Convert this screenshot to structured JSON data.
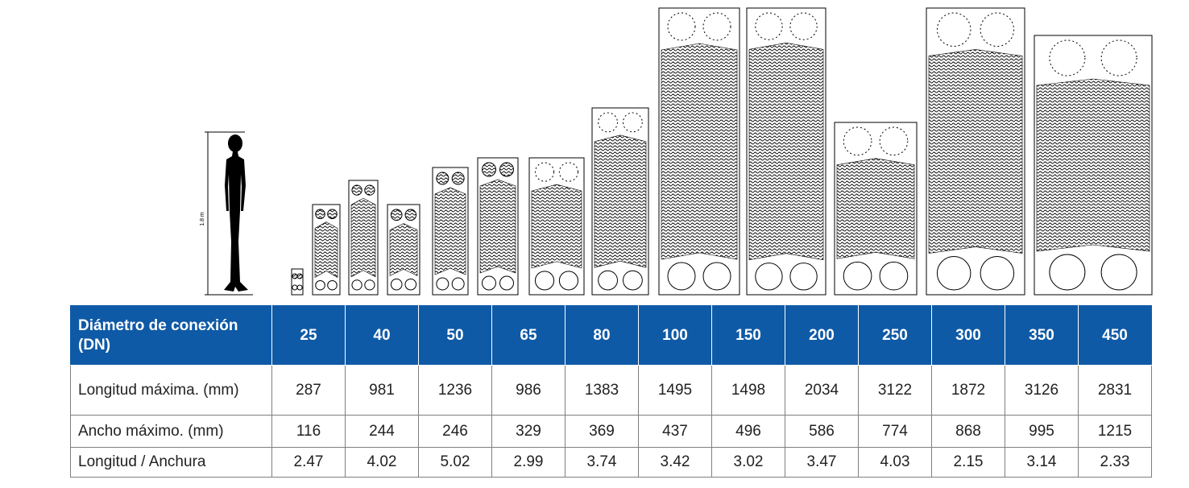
{
  "human": {
    "height_label": "1.8 m"
  },
  "table": {
    "header_label": "Diámetro de conexión (DN)",
    "columns": [
      "25",
      "40",
      "50",
      "65",
      "80",
      "100",
      "150",
      "200",
      "250",
      "300",
      "350",
      "450"
    ],
    "rows": [
      {
        "label": "Longitud máxima. (mm)",
        "values": [
          "287",
          "981",
          "1236",
          "986",
          "1383",
          "1495",
          "1498",
          "2034",
          "3122",
          "1872",
          "3126",
          "2831"
        ]
      },
      {
        "label": "Ancho máximo. (mm)",
        "values": [
          "116",
          "244",
          "246",
          "329",
          "369",
          "437",
          "496",
          "586",
          "774",
          "868",
          "995",
          "1215"
        ]
      },
      {
        "label": "Longitud / Anchura",
        "values": [
          "2.47",
          "4.02",
          "5.02",
          "2.99",
          "3.74",
          "3.42",
          "3.02",
          "3.47",
          "4.03",
          "2.15",
          "3.14",
          "2.33"
        ]
      }
    ]
  }
}
